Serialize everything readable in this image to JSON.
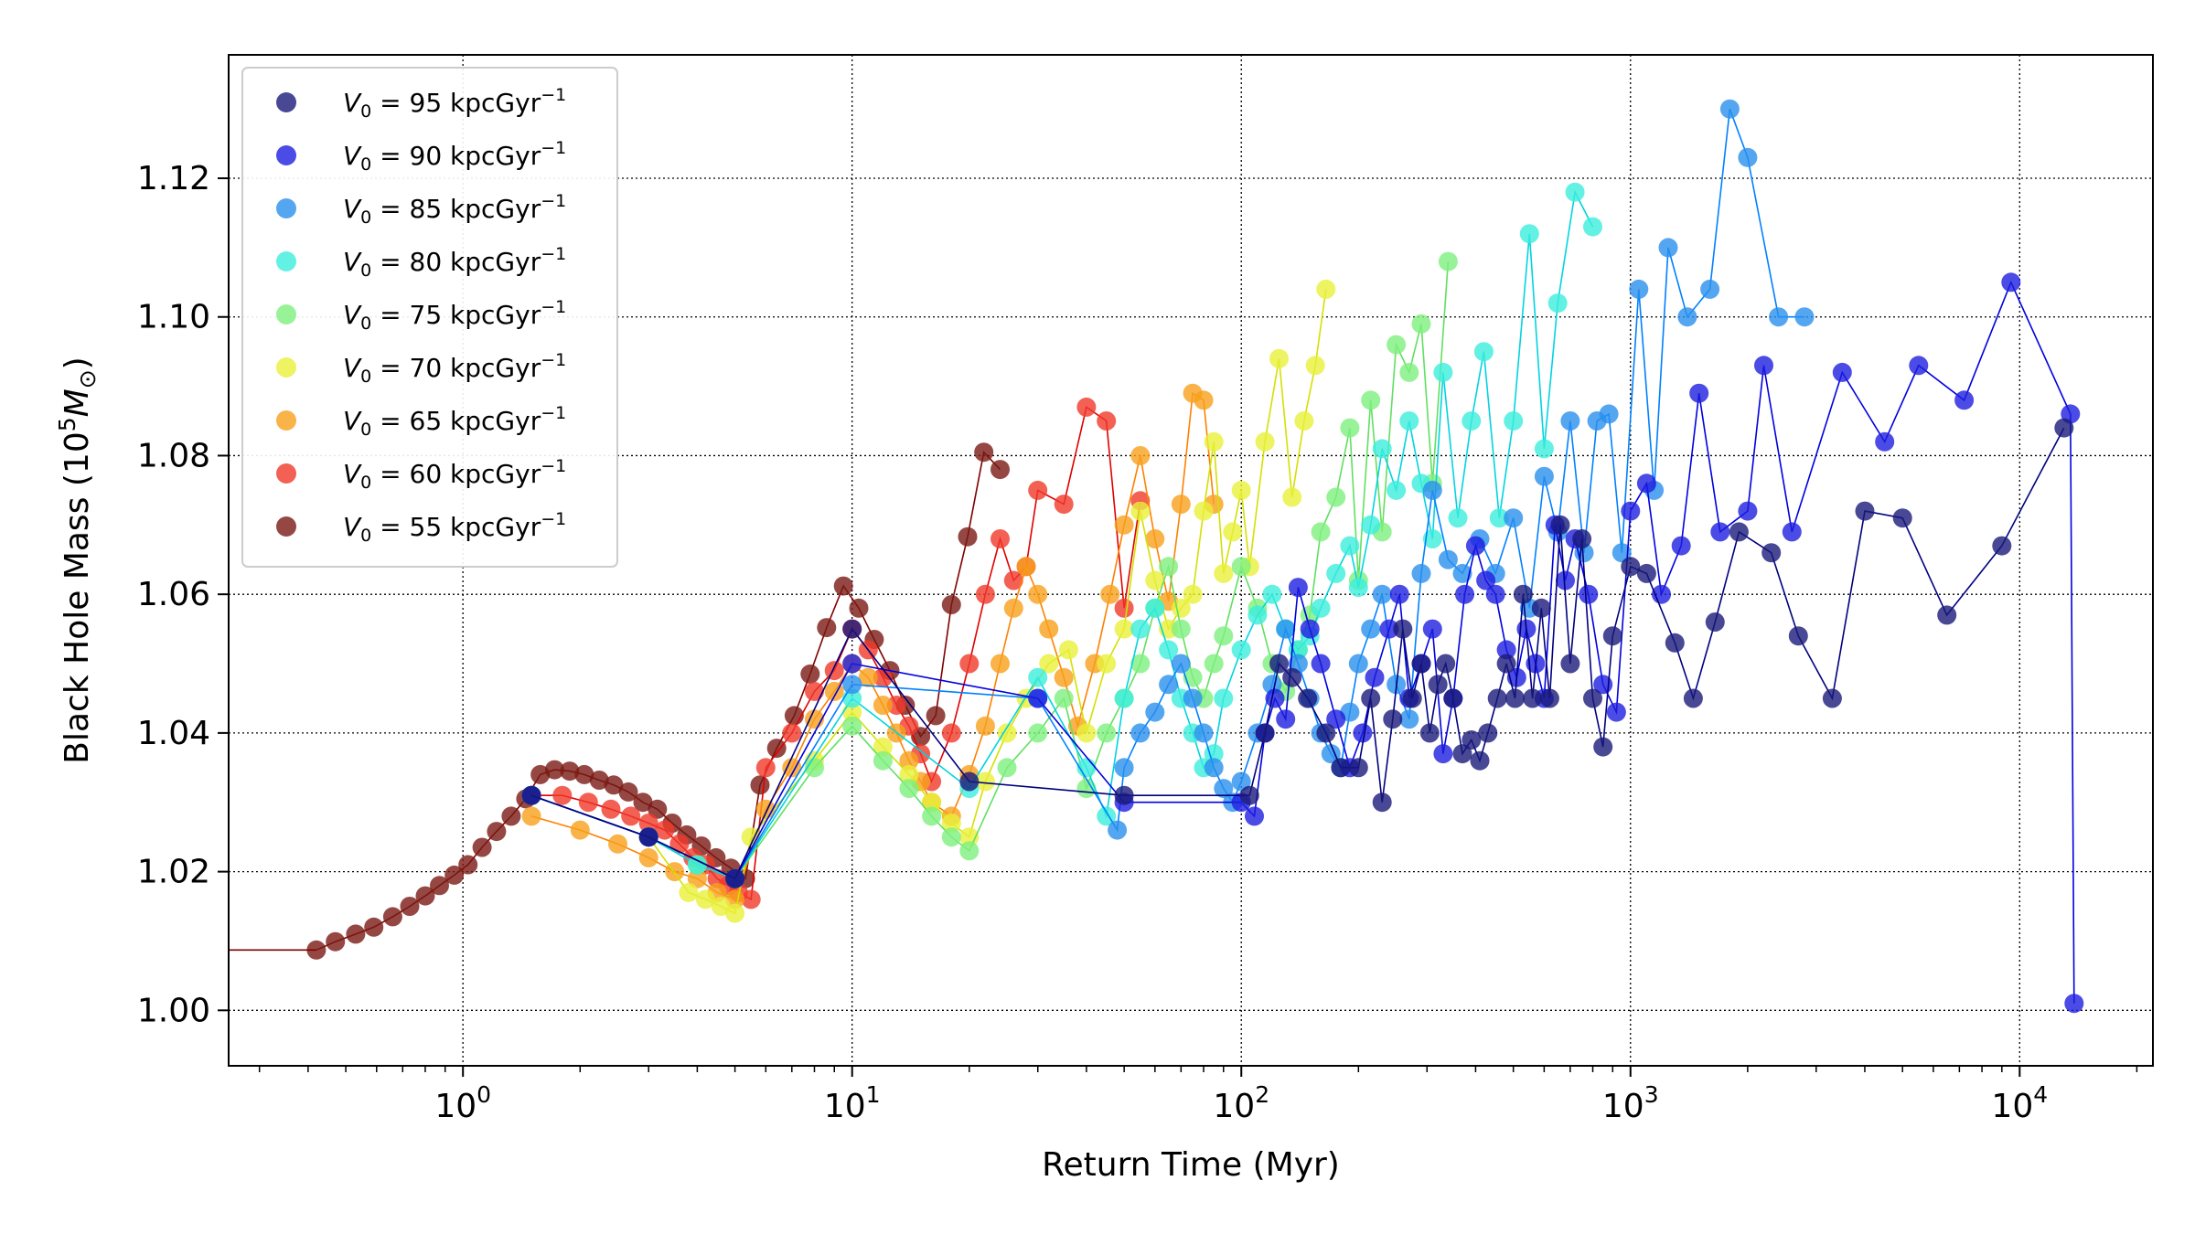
{
  "chart_data": {
    "type": "scatter",
    "xlabel": "Return Time (Myr)",
    "ylabel": "Black Hole Mass (10",
    "ylabel_sup": "5",
    "ylabel_rest": "M",
    "ylabel_sub": "⊙",
    "ylabel_close": ")",
    "xscale": "log",
    "xlim": [
      0.25,
      22000
    ],
    "ylim": [
      0.992,
      1.1378
    ],
    "grid": true,
    "legend_position": "top-left",
    "x_ticks": [
      {
        "value": 1,
        "base": "10",
        "exp": "0"
      },
      {
        "value": 10,
        "base": "10",
        "exp": "1"
      },
      {
        "value": 100,
        "base": "10",
        "exp": "2"
      },
      {
        "value": 1000,
        "base": "10",
        "exp": "3"
      },
      {
        "value": 10000,
        "base": "10",
        "exp": "4"
      }
    ],
    "y_ticks": [
      {
        "value": 1.0,
        "label": "1.00"
      },
      {
        "value": 1.02,
        "label": "1.02"
      },
      {
        "value": 1.04,
        "label": "1.04"
      },
      {
        "value": 1.06,
        "label": "1.06"
      },
      {
        "value": 1.08,
        "label": "1.08"
      },
      {
        "value": 1.1,
        "label": "1.10"
      },
      {
        "value": 1.12,
        "label": "1.12"
      }
    ],
    "legend_unit": "kpcGyr",
    "legend_unit_exp": "−1",
    "series": [
      {
        "name_prefix": "V",
        "name_sub": "0",
        "name_value": " = 95 ",
        "color": "#1a1a7a",
        "line_color": "#00007f",
        "x": [
          1.5,
          3,
          5,
          10,
          20,
          50,
          105,
          115,
          125,
          135,
          148,
          165,
          180,
          200,
          215,
          230,
          245,
          260,
          275,
          290,
          305,
          320,
          335,
          350,
          370,
          390,
          410,
          430,
          455,
          480,
          505,
          530,
          560,
          590,
          620,
          660,
          700,
          750,
          800,
          850,
          900,
          1000,
          1100,
          1300,
          1450,
          1650,
          1900,
          2300,
          2700,
          3300,
          4000,
          5000,
          6500,
          9000,
          13000
        ],
        "y": [
          1.031,
          1.025,
          1.019,
          1.055,
          1.033,
          1.031,
          1.031,
          1.04,
          1.05,
          1.048,
          1.045,
          1.04,
          1.035,
          1.035,
          1.045,
          1.03,
          1.042,
          1.055,
          1.045,
          1.05,
          1.04,
          1.047,
          1.05,
          1.045,
          1.037,
          1.039,
          1.036,
          1.04,
          1.045,
          1.05,
          1.045,
          1.06,
          1.045,
          1.058,
          1.045,
          1.07,
          1.05,
          1.068,
          1.045,
          1.038,
          1.054,
          1.064,
          1.063,
          1.053,
          1.045,
          1.056,
          1.069,
          1.066,
          1.054,
          1.045,
          1.072,
          1.071,
          1.057,
          1.067,
          1.084
        ]
      },
      {
        "name_prefix": "V",
        "name_sub": "0",
        "name_value": " = 90 ",
        "color": "#1e1ee0",
        "line_color": "#0000e0",
        "x": [
          1.5,
          3,
          5,
          10,
          30,
          50,
          100,
          108,
          115,
          122,
          130,
          140,
          150,
          160,
          175,
          190,
          205,
          220,
          240,
          255,
          270,
          290,
          310,
          330,
          350,
          375,
          400,
          425,
          450,
          480,
          510,
          540,
          570,
          600,
          640,
          680,
          720,
          780,
          850,
          920,
          1000,
          1100,
          1200,
          1350,
          1500,
          1700,
          2000,
          2200,
          2600,
          3500,
          4500,
          5500,
          7200,
          9500,
          13500,
          13800
        ],
        "y": [
          1.031,
          1.025,
          1.019,
          1.05,
          1.045,
          1.03,
          1.03,
          1.028,
          1.04,
          1.045,
          1.042,
          1.061,
          1.055,
          1.05,
          1.042,
          1.035,
          1.04,
          1.048,
          1.055,
          1.06,
          1.045,
          1.05,
          1.055,
          1.037,
          1.045,
          1.06,
          1.067,
          1.062,
          1.06,
          1.052,
          1.048,
          1.055,
          1.05,
          1.045,
          1.07,
          1.062,
          1.068,
          1.06,
          1.047,
          1.043,
          1.072,
          1.076,
          1.06,
          1.067,
          1.089,
          1.069,
          1.072,
          1.093,
          1.069,
          1.092,
          1.082,
          1.093,
          1.088,
          1.105,
          1.086,
          1.001
        ]
      },
      {
        "name_prefix": "V",
        "name_sub": "0",
        "name_value": " = 85 ",
        "color": "#2a90ee",
        "line_color": "#0080ff",
        "x": [
          1.5,
          3,
          5,
          10,
          30,
          48,
          50,
          55,
          60,
          65,
          70,
          75,
          80,
          85,
          90,
          95,
          100,
          110,
          120,
          130,
          140,
          150,
          160,
          170,
          180,
          190,
          200,
          215,
          230,
          250,
          270,
          290,
          310,
          340,
          370,
          410,
          450,
          500,
          550,
          600,
          650,
          700,
          760,
          820,
          880,
          950,
          1050,
          1150,
          1250,
          1400,
          1600,
          1800,
          2000,
          2400,
          2800
        ],
        "y": [
          1.031,
          1.025,
          1.019,
          1.047,
          1.045,
          1.026,
          1.035,
          1.04,
          1.043,
          1.047,
          1.05,
          1.045,
          1.04,
          1.035,
          1.032,
          1.03,
          1.033,
          1.04,
          1.047,
          1.055,
          1.05,
          1.045,
          1.04,
          1.037,
          1.035,
          1.043,
          1.05,
          1.055,
          1.06,
          1.047,
          1.042,
          1.063,
          1.075,
          1.065,
          1.063,
          1.068,
          1.063,
          1.071,
          1.058,
          1.077,
          1.069,
          1.085,
          1.066,
          1.085,
          1.086,
          1.066,
          1.104,
          1.075,
          1.11,
          1.1,
          1.104,
          1.13,
          1.123,
          1.1,
          1.1
        ]
      },
      {
        "name_prefix": "V",
        "name_sub": "0",
        "name_value": " = 80 ",
        "color": "#3ceedc",
        "line_color": "#00d4e0",
        "x": [
          1.5,
          3,
          4,
          5,
          10,
          20,
          30,
          40,
          45,
          50,
          55,
          60,
          65,
          70,
          75,
          80,
          85,
          90,
          100,
          110,
          120,
          130,
          140,
          150,
          160,
          175,
          190,
          200,
          215,
          230,
          250,
          270,
          290,
          310,
          330,
          360,
          390,
          420,
          460,
          500,
          550,
          600,
          650,
          720,
          800
        ],
        "y": [
          1.031,
          1.025,
          1.021,
          1.019,
          1.045,
          1.032,
          1.048,
          1.035,
          1.028,
          1.045,
          1.055,
          1.058,
          1.052,
          1.045,
          1.04,
          1.035,
          1.037,
          1.045,
          1.052,
          1.057,
          1.06,
          1.055,
          1.052,
          1.054,
          1.058,
          1.063,
          1.067,
          1.061,
          1.07,
          1.081,
          1.075,
          1.085,
          1.076,
          1.068,
          1.092,
          1.071,
          1.085,
          1.095,
          1.071,
          1.085,
          1.112,
          1.081,
          1.102,
          1.118,
          1.113
        ]
      },
      {
        "name_prefix": "V",
        "name_sub": "0",
        "name_value": " = 75 ",
        "color": "#7ef07e",
        "line_color": "#60e060",
        "x": [
          1.5,
          3,
          4,
          5,
          8,
          10,
          12,
          14,
          16,
          18,
          20,
          25,
          30,
          35,
          40,
          45,
          50,
          55,
          60,
          65,
          70,
          75,
          80,
          85,
          90,
          100,
          110,
          120,
          130,
          140,
          150,
          160,
          175,
          190,
          200,
          215,
          230,
          250,
          270,
          290,
          310,
          340
        ],
        "y": [
          1.031,
          1.025,
          1.021,
          1.019,
          1.035,
          1.041,
          1.036,
          1.032,
          1.028,
          1.025,
          1.023,
          1.035,
          1.04,
          1.045,
          1.032,
          1.04,
          1.045,
          1.05,
          1.058,
          1.064,
          1.055,
          1.048,
          1.045,
          1.05,
          1.054,
          1.064,
          1.058,
          1.05,
          1.046,
          1.052,
          1.057,
          1.069,
          1.074,
          1.084,
          1.062,
          1.088,
          1.069,
          1.096,
          1.092,
          1.099,
          1.076,
          1.108
        ]
      },
      {
        "name_prefix": "V",
        "name_sub": "0",
        "name_value": " = 70 ",
        "color": "#e8f03a",
        "line_color": "#d4e000",
        "x": [
          1.5,
          3,
          3.8,
          4.2,
          4.6,
          5,
          5.5,
          8,
          10,
          12,
          14,
          16,
          18,
          20,
          22,
          25,
          28,
          32,
          36,
          40,
          45,
          50,
          55,
          60,
          65,
          70,
          75,
          80,
          85,
          90,
          95,
          100,
          105,
          115,
          125,
          135,
          145,
          155,
          165
        ],
        "y": [
          1.031,
          1.025,
          1.017,
          1.016,
          1.015,
          1.014,
          1.025,
          1.036,
          1.043,
          1.038,
          1.034,
          1.03,
          1.027,
          1.025,
          1.033,
          1.04,
          1.045,
          1.05,
          1.052,
          1.04,
          1.05,
          1.055,
          1.072,
          1.062,
          1.055,
          1.058,
          1.06,
          1.072,
          1.082,
          1.063,
          1.069,
          1.075,
          1.064,
          1.082,
          1.094,
          1.074,
          1.085,
          1.093,
          1.104
        ]
      },
      {
        "name_prefix": "V",
        "name_sub": "0",
        "name_value": " = 65 ",
        "color": "#f8a01c",
        "line_color": "#ff8000",
        "x": [
          1.5,
          2,
          2.5,
          3,
          3.5,
          4,
          4.5,
          5,
          6,
          7,
          8,
          9,
          10,
          11,
          12,
          13,
          14,
          15,
          16,
          18,
          20,
          22,
          24,
          26,
          28,
          30,
          32,
          35,
          38,
          42,
          46,
          50,
          55,
          60,
          65,
          70,
          75,
          80,
          85
        ],
        "y": [
          1.028,
          1.026,
          1.024,
          1.022,
          1.02,
          1.019,
          1.017,
          1.016,
          1.029,
          1.035,
          1.042,
          1.046,
          1.05,
          1.048,
          1.044,
          1.04,
          1.036,
          1.033,
          1.03,
          1.028,
          1.034,
          1.041,
          1.05,
          1.058,
          1.064,
          1.06,
          1.055,
          1.048,
          1.041,
          1.05,
          1.06,
          1.07,
          1.08,
          1.068,
          1.059,
          1.073,
          1.089,
          1.088,
          1.073
        ]
      },
      {
        "name_prefix": "V",
        "name_sub": "0",
        "name_value": " = 60 ",
        "color": "#f03a2a",
        "line_color": "#e00000",
        "x": [
          1.5,
          1.8,
          2.1,
          2.4,
          2.7,
          3.0,
          3.3,
          3.6,
          3.9,
          4.2,
          4.5,
          4.8,
          5.1,
          5.5,
          6,
          7,
          8,
          9,
          10,
          11,
          12,
          13,
          14,
          15,
          16,
          18,
          20,
          22,
          24,
          26,
          28,
          30,
          35,
          40,
          45,
          50,
          55
        ],
        "y": [
          1.031,
          1.031,
          1.03,
          1.029,
          1.028,
          1.027,
          1.026,
          1.024,
          1.022,
          1.021,
          1.019,
          1.018,
          1.017,
          1.016,
          1.035,
          1.04,
          1.046,
          1.049,
          1.055,
          1.052,
          1.048,
          1.044,
          1.041,
          1.037,
          1.033,
          1.04,
          1.05,
          1.06,
          1.068,
          1.062,
          1.064,
          1.075,
          1.073,
          1.087,
          1.085,
          1.058,
          1.0735
        ]
      },
      {
        "name_prefix": "V",
        "name_sub": "0",
        "name_value": " = 55 ",
        "color": "#7a1a14",
        "line_color": "#7f0000",
        "x": [
          0.42,
          0.47,
          0.53,
          0.59,
          0.66,
          0.73,
          0.8,
          0.87,
          0.95,
          1.03,
          1.12,
          1.22,
          1.33,
          1.45,
          1.58,
          1.72,
          1.88,
          2.05,
          2.24,
          2.44,
          2.66,
          2.9,
          3.16,
          3.45,
          3.76,
          4.1,
          4.47,
          4.88,
          5.32,
          5.8,
          6.4,
          7.1,
          7.8,
          8.6,
          9.5,
          10.4,
          11.4,
          12.5,
          13.7,
          15,
          16.4,
          18,
          19.8,
          21.8,
          24
        ],
        "y": [
          1.0087,
          1.0099,
          1.011,
          1.012,
          1.0135,
          1.015,
          1.0165,
          1.018,
          1.0195,
          1.021,
          1.0235,
          1.0258,
          1.028,
          1.0305,
          1.034,
          1.0347,
          1.0345,
          1.034,
          1.0332,
          1.0325,
          1.0315,
          1.03,
          1.029,
          1.027,
          1.0253,
          1.0237,
          1.022,
          1.0205,
          1.019,
          1.0325,
          1.0378,
          1.0425,
          1.0485,
          1.0552,
          1.0612,
          1.058,
          1.0535,
          1.049,
          1.044,
          1.0395,
          1.0425,
          1.0585,
          1.0683,
          1.0805,
          1.078
        ]
      }
    ]
  }
}
